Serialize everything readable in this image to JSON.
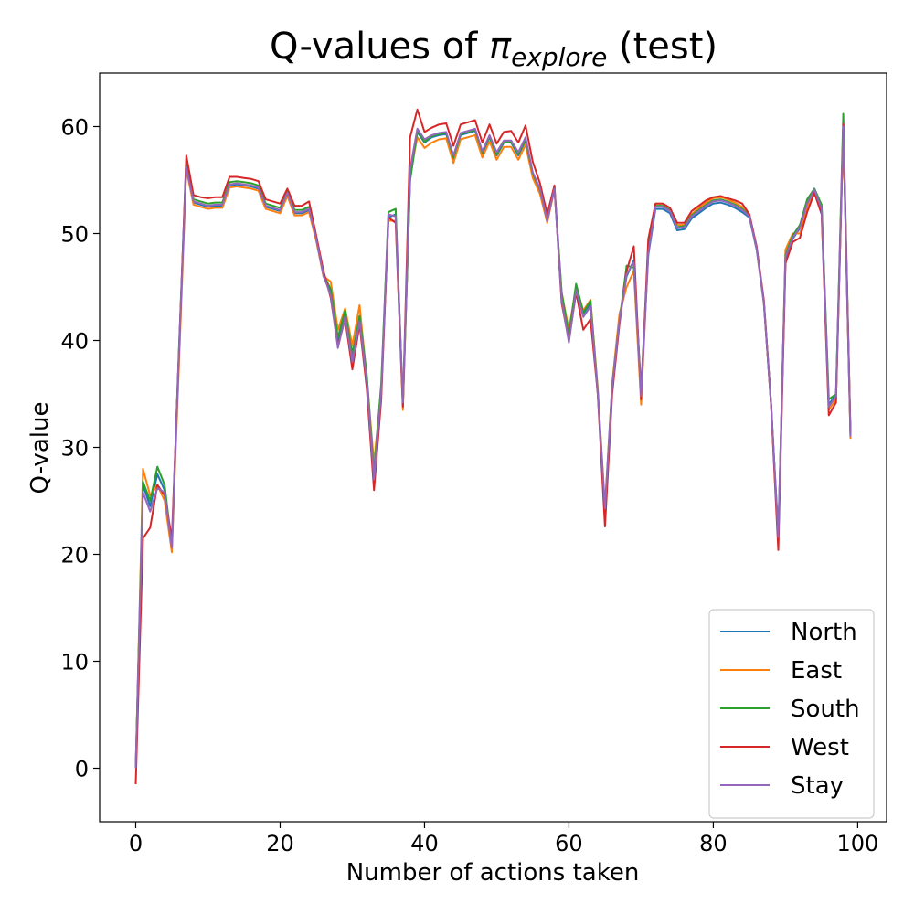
{
  "chart_data": {
    "type": "line",
    "title": {
      "prefix": "Q-values of ",
      "pi": "π",
      "subscript": "explore",
      "suffix": " (test)"
    },
    "xlabel": "Number of actions taken",
    "ylabel": "Q-value",
    "xlim": [
      -5,
      104
    ],
    "ylim": [
      -5,
      65
    ],
    "xticks": [
      0,
      20,
      40,
      60,
      80,
      100
    ],
    "yticks": [
      0,
      10,
      20,
      30,
      40,
      50,
      60
    ],
    "grid": false,
    "legend_position": "bottom-right",
    "x": [
      0,
      1,
      2,
      3,
      4,
      5,
      6,
      7,
      8,
      9,
      10,
      11,
      12,
      13,
      14,
      15,
      16,
      17,
      18,
      19,
      20,
      21,
      22,
      23,
      24,
      25,
      26,
      27,
      28,
      29,
      30,
      31,
      32,
      33,
      34,
      35,
      36,
      37,
      38,
      39,
      40,
      41,
      42,
      43,
      44,
      45,
      46,
      47,
      48,
      49,
      50,
      51,
      52,
      53,
      54,
      55,
      56,
      57,
      58,
      59,
      60,
      61,
      62,
      63,
      64,
      65,
      66,
      67,
      68,
      69,
      70,
      71,
      72,
      73,
      74,
      75,
      76,
      77,
      78,
      79,
      80,
      81,
      82,
      83,
      84,
      85,
      86,
      87,
      88,
      89,
      90,
      91,
      92,
      93,
      94,
      95,
      96,
      97,
      98,
      99
    ],
    "series": [
      {
        "name": "North",
        "color": "#1f77b4",
        "values": [
          0,
          26.5,
          24.5,
          27.5,
          26.0,
          20.5,
          39.0,
          56.5,
          52.9,
          52.7,
          52.5,
          52.6,
          52.6,
          54.5,
          54.6,
          54.5,
          54.4,
          54.2,
          52.5,
          52.3,
          52.1,
          53.7,
          51.9,
          51.9,
          52.2,
          49.5,
          46.0,
          44.5,
          40.0,
          42.5,
          38.8,
          42.0,
          36.5,
          27.5,
          35.0,
          51.5,
          51.8,
          34.0,
          55.0,
          59.5,
          58.5,
          59.0,
          59.2,
          59.3,
          57.0,
          59.2,
          59.4,
          59.6,
          57.5,
          59.0,
          57.3,
          58.5,
          58.5,
          57.3,
          58.7,
          55.5,
          54.0,
          51.3,
          54.3,
          44.0,
          40.0,
          44.5,
          42.5,
          43.5,
          35.0,
          24.0,
          35.5,
          42.0,
          46.0,
          47.5,
          35.0,
          48.0,
          52.3,
          52.3,
          51.9,
          50.3,
          50.4,
          51.4,
          51.9,
          52.4,
          52.8,
          52.9,
          52.7,
          52.4,
          52.0,
          51.5,
          48.5,
          43.5,
          34.0,
          22.0,
          47.5,
          49.5,
          50.5,
          53.0,
          54.2,
          52.5,
          34.0,
          35.0,
          60.0,
          31.0
        ]
      },
      {
        "name": "East",
        "color": "#ff7f0e",
        "values": [
          0,
          28.0,
          25.5,
          26.5,
          25.0,
          20.2,
          38.0,
          56.0,
          52.7,
          52.5,
          52.3,
          52.4,
          52.4,
          54.3,
          54.4,
          54.3,
          54.2,
          54.0,
          52.3,
          52.1,
          51.9,
          53.5,
          51.7,
          51.7,
          52.0,
          49.3,
          46.0,
          45.5,
          41.0,
          43.0,
          39.5,
          43.3,
          36.5,
          28.5,
          35.5,
          51.2,
          51.2,
          33.5,
          55.5,
          59.0,
          58.0,
          58.5,
          58.8,
          58.9,
          56.6,
          58.8,
          59.0,
          59.2,
          57.1,
          58.6,
          56.9,
          58.1,
          58.1,
          56.9,
          58.3,
          55.2,
          53.7,
          51.0,
          54.1,
          44.5,
          41.0,
          45.0,
          42.8,
          43.8,
          35.5,
          24.5,
          36.0,
          42.5,
          45.0,
          46.5,
          34.0,
          48.5,
          52.8,
          52.8,
          52.4,
          50.8,
          50.8,
          51.8,
          52.4,
          52.9,
          53.3,
          53.4,
          53.2,
          52.9,
          52.5,
          51.6,
          48.6,
          43.6,
          34.0,
          21.0,
          48.5,
          50.0,
          50.0,
          52.5,
          54.0,
          52.0,
          33.5,
          34.5,
          59.5,
          30.8
        ]
      },
      {
        "name": "South",
        "color": "#2ca02c",
        "values": [
          0,
          26.8,
          25.0,
          28.2,
          26.5,
          20.8,
          39.5,
          56.8,
          53.2,
          53.0,
          52.8,
          52.9,
          52.9,
          54.8,
          54.9,
          54.8,
          54.7,
          54.5,
          52.8,
          52.6,
          52.4,
          54.0,
          52.2,
          52.2,
          52.5,
          49.6,
          46.2,
          44.8,
          40.3,
          42.8,
          38.5,
          42.3,
          36.8,
          27.5,
          36.0,
          52.0,
          52.3,
          34.0,
          55.0,
          59.6,
          58.6,
          59.1,
          59.3,
          59.4,
          57.1,
          59.3,
          59.5,
          59.7,
          57.6,
          59.1,
          57.4,
          58.6,
          58.6,
          57.4,
          58.8,
          55.6,
          54.1,
          51.4,
          54.4,
          44.5,
          40.5,
          45.3,
          42.6,
          43.7,
          35.3,
          24.2,
          35.8,
          41.8,
          47.0,
          46.8,
          35.5,
          48.5,
          52.6,
          52.6,
          52.2,
          50.6,
          50.7,
          51.7,
          52.2,
          52.7,
          53.1,
          53.2,
          53.0,
          52.7,
          52.3,
          51.7,
          48.7,
          43.7,
          34.2,
          21.5,
          48.0,
          49.8,
          50.8,
          53.2,
          54.2,
          52.7,
          34.5,
          35.0,
          61.2,
          31.2
        ]
      },
      {
        "name": "West",
        "color": "#d62728",
        "values": [
          -1.5,
          21.5,
          22.5,
          26.5,
          25.5,
          21.5,
          39.0,
          57.3,
          53.6,
          53.4,
          53.3,
          53.4,
          53.4,
          55.3,
          55.3,
          55.2,
          55.1,
          54.9,
          53.2,
          53.0,
          52.8,
          54.2,
          52.6,
          52.6,
          53.0,
          49.8,
          46.5,
          44.0,
          39.5,
          42.0,
          37.3,
          41.5,
          35.5,
          26.0,
          34.5,
          51.5,
          51.0,
          33.8,
          59.0,
          61.6,
          59.5,
          59.9,
          60.2,
          60.3,
          58.2,
          60.2,
          60.4,
          60.6,
          58.5,
          60.2,
          58.4,
          59.5,
          59.6,
          58.5,
          60.1,
          56.7,
          54.7,
          51.8,
          54.5,
          43.5,
          40.0,
          44.5,
          41.0,
          42.0,
          35.0,
          22.6,
          35.0,
          41.5,
          46.5,
          48.8,
          34.5,
          49.5,
          52.8,
          52.8,
          52.4,
          51.0,
          51.0,
          52.1,
          52.6,
          53.1,
          53.4,
          53.5,
          53.3,
          53.1,
          52.8,
          51.8,
          48.8,
          43.8,
          34.0,
          20.4,
          47.2,
          49.2,
          49.6,
          52.0,
          53.8,
          51.8,
          33.0,
          34.2,
          60.2,
          31.4
        ]
      },
      {
        "name": "Stay",
        "color": "#9467bd",
        "values": [
          0,
          25.8,
          24.0,
          26.2,
          25.8,
          20.6,
          39.2,
          56.2,
          53.0,
          52.8,
          52.6,
          52.7,
          52.7,
          54.6,
          54.7,
          54.6,
          54.5,
          54.3,
          52.6,
          52.4,
          52.2,
          53.8,
          52.0,
          52.0,
          52.3,
          49.5,
          46.1,
          44.2,
          39.3,
          42.2,
          38.0,
          41.8,
          36.2,
          27.0,
          35.2,
          51.8,
          51.6,
          34.2,
          56.0,
          59.8,
          58.8,
          59.2,
          59.4,
          59.5,
          57.3,
          59.4,
          59.6,
          59.8,
          57.7,
          59.2,
          57.6,
          58.7,
          58.7,
          57.6,
          59.0,
          55.7,
          54.2,
          51.2,
          54.2,
          43.8,
          39.8,
          44.7,
          42.2,
          43.2,
          35.1,
          24.3,
          35.6,
          41.8,
          46.2,
          47.3,
          34.8,
          48.2,
          52.5,
          52.5,
          52.1,
          50.5,
          50.6,
          51.6,
          52.1,
          52.6,
          53.0,
          53.1,
          52.9,
          52.6,
          52.2,
          51.6,
          48.6,
          43.6,
          34.1,
          21.6,
          47.8,
          49.6,
          50.6,
          52.8,
          54.1,
          52.3,
          33.8,
          34.8,
          60.0,
          31.0
        ]
      }
    ]
  }
}
